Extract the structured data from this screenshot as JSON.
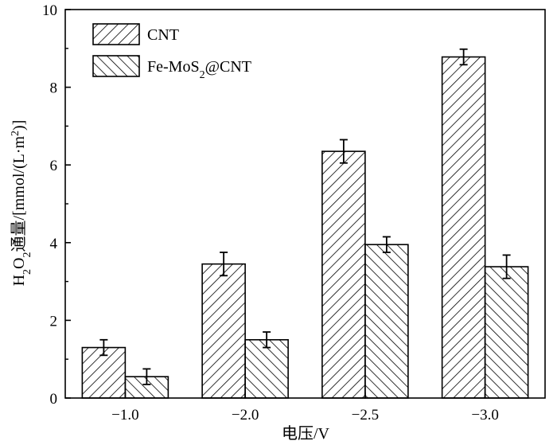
{
  "chart_data": {
    "type": "bar",
    "categories": [
      "−1.0",
      "−2.0",
      "−2.5",
      "−3.0"
    ],
    "series": [
      {
        "name": "CNT",
        "name_base": "CNT",
        "name_sub": "",
        "name_tail": "",
        "values": [
          1.3,
          3.45,
          6.35,
          8.78
        ],
        "errors": [
          0.2,
          0.3,
          0.3,
          0.2
        ],
        "pattern": "forward-hatch"
      },
      {
        "name": "Fe-MoS2@CNT",
        "name_base": "Fe-MoS",
        "name_sub": "2",
        "name_tail": "@CNT",
        "values": [
          0.55,
          1.5,
          3.95,
          3.38
        ],
        "errors": [
          0.2,
          0.2,
          0.2,
          0.3
        ],
        "pattern": "backward-hatch"
      }
    ],
    "xlabel": "电压/V",
    "ylabel": {
      "parts": [
        {
          "text": "H",
          "sub": false,
          "sup": false
        },
        {
          "text": "2",
          "sub": true,
          "sup": false
        },
        {
          "text": "O",
          "sub": false,
          "sup": false
        },
        {
          "text": "2",
          "sub": true,
          "sup": false
        },
        {
          "text": "通量/[mmol/(L·m",
          "sub": false,
          "sup": false
        },
        {
          "text": "2",
          "sub": false,
          "sup": true
        },
        {
          "text": ")]",
          "sub": false,
          "sup": false
        }
      ]
    },
    "ylim": [
      0,
      10
    ],
    "yticks": [
      0,
      2,
      4,
      6,
      8,
      10
    ],
    "legend_position": "top-left",
    "grid": false,
    "bar_fill": "#ffffff",
    "stroke_color": "#000000"
  }
}
